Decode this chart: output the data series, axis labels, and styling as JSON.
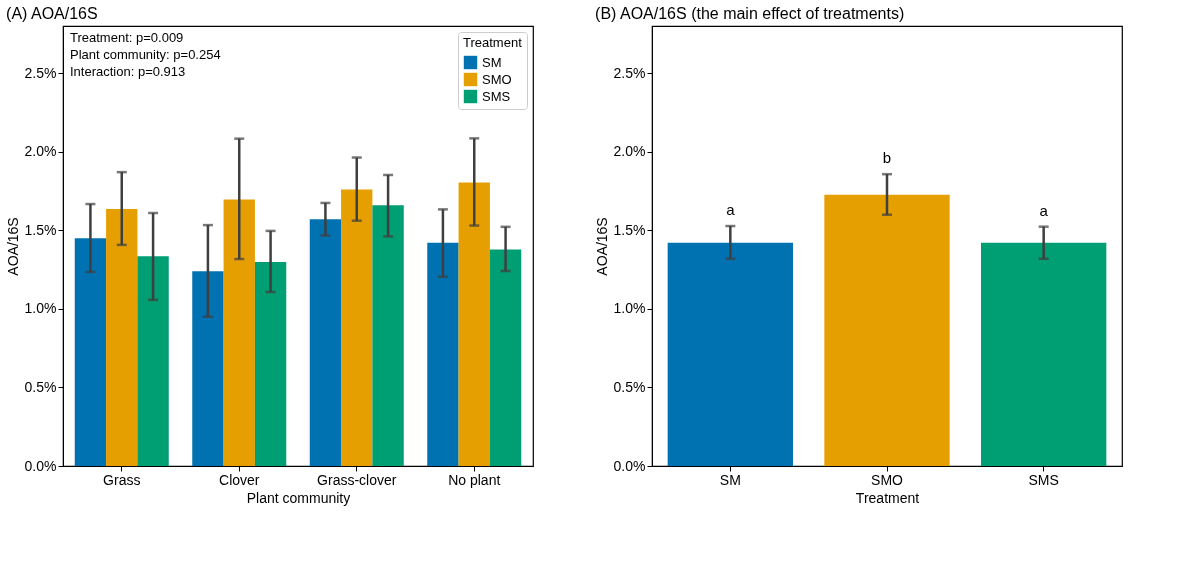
{
  "chart_data": [
    {
      "type": "bar",
      "title": "(A) AOA/16S",
      "xlabel": "Plant community",
      "ylabel": "AOA/16S",
      "legend_title": "Treatment",
      "legend": "top right",
      "grid": false,
      "categories": [
        "Grass",
        "Clover",
        "Grass-clover",
        "No plant"
      ],
      "series": [
        {
          "name": "SM",
          "color": "#0072b2",
          "values": [
            1.45,
            1.24,
            1.57,
            1.42
          ],
          "errors": [
            [
              1.235,
              1.667
            ],
            [
              0.95,
              1.533
            ],
            [
              1.467,
              1.674
            ],
            [
              1.204,
              1.633
            ]
          ]
        },
        {
          "name": "SMO",
          "color": "#e69f00",
          "values": [
            1.635,
            1.696,
            1.759,
            1.804
          ],
          "errors": [
            [
              1.407,
              1.87
            ],
            [
              1.317,
              2.083
            ],
            [
              1.561,
              1.963
            ],
            [
              1.53,
              2.085
            ]
          ]
        },
        {
          "name": "SMS",
          "color": "#009e73",
          "values": [
            1.335,
            1.298,
            1.659,
            1.378
          ],
          "errors": [
            [
              1.057,
              1.61
            ],
            [
              1.107,
              1.496
            ],
            [
              1.461,
              1.852
            ],
            [
              1.241,
              1.522
            ]
          ]
        }
      ],
      "ylim": [
        0,
        2.8
      ],
      "yticks": [
        {
          "value": 0,
          "label": "0.0%"
        },
        {
          "value": 0.5,
          "label": "0.5%"
        },
        {
          "value": 1.0,
          "label": "1.0%"
        },
        {
          "value": 1.5,
          "label": "1.5%"
        },
        {
          "value": 2.0,
          "label": "2.0%"
        },
        {
          "value": 2.5,
          "label": "2.5%"
        }
      ],
      "annotations": [
        "Treatment: p=0.009",
        "Plant community: p=0.254",
        "Interaction: p=0.913"
      ]
    },
    {
      "type": "bar",
      "title": "(B) AOA/16S (the main effect of treatments)",
      "xlabel": "Treatment",
      "ylabel": "AOA/16S",
      "grid": false,
      "categories": [
        "SM",
        "SMO",
        "SMS"
      ],
      "values": [
        1.42,
        1.726,
        1.42
      ],
      "colors": [
        "#0072b2",
        "#e69f00",
        "#009e73"
      ],
      "errors": [
        [
          1.319,
          1.527
        ],
        [
          1.599,
          1.857
        ],
        [
          1.319,
          1.523
        ]
      ],
      "ylim": [
        0,
        2.8
      ],
      "yticks": [
        {
          "value": 0,
          "label": "0.0%"
        },
        {
          "value": 0.5,
          "label": "0.5%"
        },
        {
          "value": 1.0,
          "label": "1.0%"
        },
        {
          "value": 1.5,
          "label": "1.5%"
        },
        {
          "value": 2.0,
          "label": "2.0%"
        },
        {
          "value": 2.5,
          "label": "2.5%"
        }
      ],
      "annotations": [
        {
          "text": "a",
          "x": "SM",
          "y": 1.527
        },
        {
          "text": "b",
          "x": "SMO",
          "y": 1.857
        },
        {
          "text": "a",
          "x": "SMS",
          "y": 1.523
        }
      ]
    }
  ]
}
